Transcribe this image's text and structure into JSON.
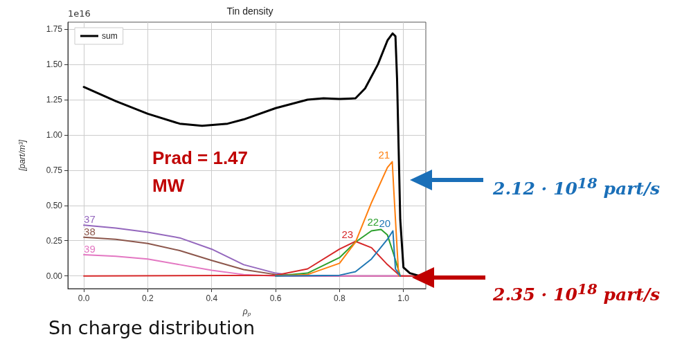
{
  "chart_data": {
    "type": "line",
    "title": "Tin density",
    "xlabel": "ρ$_{p}$",
    "ylabel": "[part/m³]",
    "annotations": [
      "1e16",
      "Prad = 1.47\nMW",
      "2.12 · 10$^{18}$ part/s",
      "2.35 · 10$^{18}$ part/s",
      "Sn charge distribution"
    ],
    "xlim": [
      -0.05,
      1.07
    ],
    "xticks": [
      {
        "value": 0,
        "label": "0.0"
      },
      {
        "value": 0.2,
        "label": "0.2"
      },
      {
        "value": 0.4,
        "label": "0.4"
      },
      {
        "value": 0.6,
        "label": "0.6"
      },
      {
        "value": 0.8,
        "label": "0.8"
      },
      {
        "value": 1,
        "label": "1.0"
      }
    ],
    "ylim": [
      -0.09,
      1.8
    ],
    "yticks": [
      {
        "value": 0,
        "label": "0.00"
      },
      {
        "value": 0.25,
        "label": "0.25"
      },
      {
        "value": 0.5,
        "label": "0.50"
      },
      {
        "value": 0.75,
        "label": "0.75"
      },
      {
        "value": 1,
        "label": "1.00"
      },
      {
        "value": 1.25,
        "label": "1.25"
      },
      {
        "value": 1.5,
        "label": "1.50"
      },
      {
        "value": 1.75,
        "label": "1.75"
      }
    ],
    "grid": true,
    "legend": "top left",
    "marker": "none",
    "line_style": "solid",
    "series": [
      {
        "name": "sum",
        "color": "#000000",
        "x": [
          0,
          0.1,
          0.2,
          0.3,
          0.37,
          0.45,
          0.5,
          0.6,
          0.7,
          0.75,
          0.8,
          0.85,
          0.88,
          0.92,
          0.95,
          0.966,
          0.975,
          0.98,
          0.985,
          0.99,
          1.0,
          1.02,
          1.05
        ],
        "values": [
          1.34,
          1.24,
          1.15,
          1.08,
          1.065,
          1.08,
          1.11,
          1.19,
          1.25,
          1.26,
          1.255,
          1.26,
          1.33,
          1.5,
          1.67,
          1.72,
          1.7,
          1.4,
          0.9,
          0.4,
          0.06,
          0.02,
          0
        ]
      },
      {
        "name": "37",
        "color": "#9467bd",
        "x": [
          0,
          0.1,
          0.2,
          0.3,
          0.4,
          0.5,
          0.6,
          0.65,
          0.7,
          1.0
        ],
        "values": [
          0.36,
          0.34,
          0.31,
          0.27,
          0.19,
          0.08,
          0.02,
          0.005,
          0,
          0
        ]
      },
      {
        "name": "38",
        "color": "#8c564b",
        "x": [
          0,
          0.1,
          0.2,
          0.3,
          0.4,
          0.5,
          0.6,
          0.65,
          1.05
        ],
        "values": [
          0.275,
          0.26,
          0.23,
          0.18,
          0.11,
          0.045,
          0.01,
          0,
          0
        ]
      },
      {
        "name": "39",
        "color": "#e377c2",
        "x": [
          0,
          0.1,
          0.2,
          0.3,
          0.4,
          0.5,
          0.6,
          1.05
        ],
        "values": [
          0.15,
          0.14,
          0.12,
          0.08,
          0.04,
          0.01,
          0,
          0
        ]
      },
      {
        "name": "23",
        "color": "#d62728",
        "x": [
          0,
          0.6,
          0.7,
          0.8,
          0.85,
          0.9,
          0.95,
          0.99,
          1.05
        ],
        "values": [
          0,
          0.005,
          0.05,
          0.19,
          0.245,
          0.2,
          0.08,
          0,
          0
        ]
      },
      {
        "name": "22",
        "color": "#2ca02c",
        "x": [
          0.6,
          0.7,
          0.8,
          0.85,
          0.9,
          0.93,
          0.95,
          0.97,
          0.99
        ],
        "values": [
          0,
          0.02,
          0.13,
          0.24,
          0.32,
          0.33,
          0.29,
          0.15,
          0
        ]
      },
      {
        "name": "21",
        "color": "#ff7f0e",
        "x": [
          0.6,
          0.7,
          0.8,
          0.85,
          0.9,
          0.95,
          0.965,
          0.97,
          0.985
        ],
        "values": [
          0,
          0.01,
          0.09,
          0.24,
          0.52,
          0.77,
          0.81,
          0.6,
          0
        ]
      },
      {
        "name": "20",
        "color": "#1f77b4",
        "x": [
          0.6,
          0.8,
          0.85,
          0.9,
          0.95,
          0.967,
          0.975,
          0.99
        ],
        "values": [
          0,
          0.005,
          0.03,
          0.12,
          0.26,
          0.32,
          0.05,
          0
        ]
      }
    ]
  }
}
